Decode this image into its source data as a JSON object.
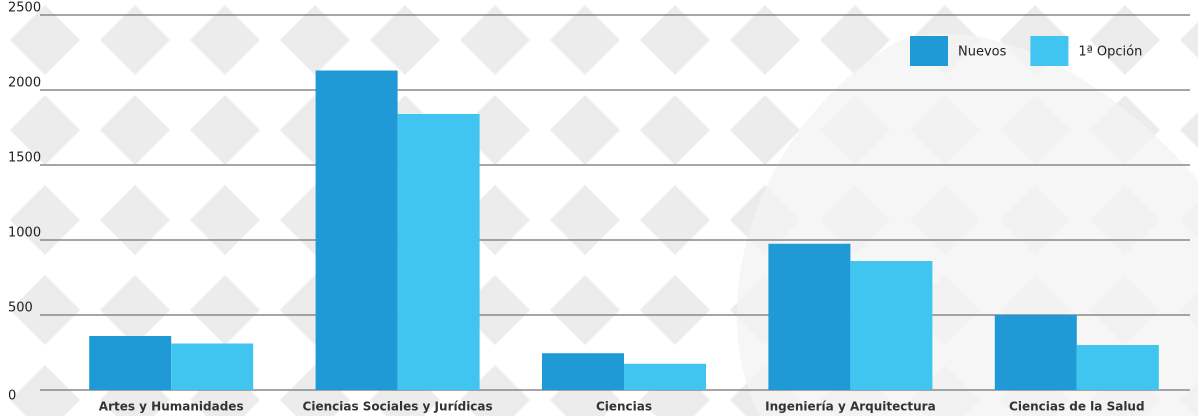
{
  "chart_data": {
    "type": "bar",
    "categories": [
      "Artes y Humanidades",
      "Ciencias Sociales y Jurídicas",
      "Ciencias",
      "Ingeniería y Arquitectura",
      "Ciencias de la Salud"
    ],
    "series": [
      {
        "name": "Nuevos",
        "color": "#1f9ad6",
        "values": [
          360,
          2130,
          245,
          975,
          500
        ]
      },
      {
        "name": "1ª Opción",
        "color": "#40c4f0",
        "values": [
          310,
          1840,
          175,
          860,
          300
        ]
      }
    ],
    "ylim": [
      0,
      2500
    ],
    "yticks": [
      0,
      500,
      1000,
      1500,
      2000,
      2500
    ],
    "grid": true,
    "legend": "top-right"
  }
}
